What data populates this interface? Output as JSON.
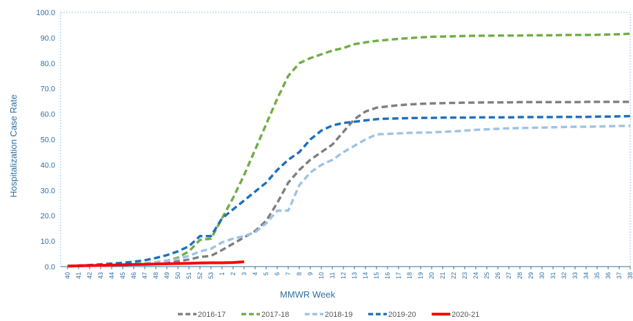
{
  "chart_data": {
    "type": "line",
    "xlabel": "MMWR Week",
    "ylabel": "Hospitalization Case Rate",
    "ylim": [
      0,
      100
    ],
    "yticks": [
      "0.0",
      "10.0",
      "20.0",
      "30.0",
      "40.0",
      "50.0",
      "60.0",
      "70.0",
      "80.0",
      "90.0",
      "100.0"
    ],
    "weeks": [
      "40",
      "41",
      "42",
      "43",
      "44",
      "45",
      "46",
      "47",
      "48",
      "49",
      "50",
      "51",
      "52",
      "53",
      "1",
      "2",
      "3",
      "4",
      "5",
      "6",
      "7",
      "8",
      "9",
      "10",
      "11",
      "12",
      "13",
      "14",
      "15",
      "16",
      "17",
      "18",
      "19",
      "20",
      "21",
      "22",
      "23",
      "24",
      "25",
      "26",
      "27",
      "28",
      "29",
      "30",
      "31",
      "32",
      "33",
      "34",
      "35",
      "36",
      "37",
      "38"
    ],
    "legend_position": "bottom",
    "grid": false,
    "series": [
      {
        "name": "2016-17",
        "color": "#7f7f7f",
        "dash": "dashed",
        "values": [
          0.1,
          0.2,
          0.3,
          0.4,
          0.5,
          0.6,
          0.8,
          1.0,
          1.3,
          1.6,
          2.0,
          2.8,
          3.8,
          4.2,
          6.5,
          9.0,
          11.5,
          14.0,
          18.0,
          25.0,
          33.0,
          38.0,
          42.0,
          45.0,
          48.0,
          53.0,
          58.0,
          61.0,
          62.5,
          63.0,
          63.5,
          63.8,
          64.0,
          64.2,
          64.3,
          64.4,
          64.5,
          64.5,
          64.6,
          64.6,
          64.6,
          64.7,
          64.7,
          64.7,
          64.7,
          64.7,
          64.7,
          64.8,
          64.8,
          64.8,
          64.8,
          64.8
        ]
      },
      {
        "name": "2017-18",
        "color": "#70ad47",
        "dash": "dashed",
        "values": [
          0.1,
          0.2,
          0.3,
          0.5,
          0.6,
          0.8,
          1.0,
          1.3,
          1.7,
          2.3,
          3.5,
          6.0,
          10.5,
          11.0,
          19.0,
          27.0,
          36.0,
          46.0,
          56.0,
          66.0,
          75.0,
          80.0,
          82.0,
          83.5,
          85.0,
          86.0,
          87.5,
          88.2,
          88.8,
          89.2,
          89.6,
          89.9,
          90.2,
          90.4,
          90.5,
          90.6,
          90.7,
          90.8,
          90.8,
          90.9,
          90.9,
          90.9,
          91.0,
          91.0,
          91.0,
          91.1,
          91.1,
          91.1,
          91.2,
          91.3,
          91.4,
          91.6
        ]
      },
      {
        "name": "2018-19",
        "color": "#9dc3e6",
        "dash": "dashed",
        "values": [
          0.1,
          0.2,
          0.3,
          0.4,
          0.5,
          0.6,
          0.8,
          1.2,
          1.6,
          2.2,
          3.0,
          4.2,
          6.0,
          7.0,
          9.5,
          11.0,
          12.0,
          13.5,
          17.0,
          22.0,
          22.0,
          32.0,
          37.0,
          40.0,
          42.0,
          45.0,
          47.5,
          50.0,
          52.0,
          52.2,
          52.4,
          52.6,
          52.7,
          52.8,
          53.0,
          53.2,
          53.5,
          53.8,
          54.0,
          54.2,
          54.4,
          54.5,
          54.6,
          54.7,
          54.8,
          54.9,
          55.0,
          55.0,
          55.1,
          55.2,
          55.3,
          55.4
        ]
      },
      {
        "name": "2019-20",
        "color": "#1f6fbf",
        "dash": "dashed",
        "values": [
          0.2,
          0.4,
          0.6,
          0.9,
          1.2,
          1.5,
          1.9,
          2.5,
          3.4,
          4.5,
          6.0,
          8.0,
          12.0,
          12.0,
          19.0,
          22.5,
          26.0,
          29.5,
          33.0,
          38.0,
          42.0,
          45.0,
          50.0,
          53.5,
          55.5,
          56.5,
          57.0,
          57.5,
          58.0,
          58.2,
          58.3,
          58.4,
          58.5,
          58.5,
          58.6,
          58.6,
          58.6,
          58.7,
          58.7,
          58.7,
          58.7,
          58.8,
          58.8,
          58.8,
          58.8,
          58.9,
          58.9,
          58.9,
          59.0,
          59.0,
          59.1,
          59.2
        ]
      },
      {
        "name": "2020-21",
        "color": "#ff0000",
        "dash": "solid",
        "values": [
          0.2,
          0.3,
          0.4,
          0.5,
          0.6,
          0.7,
          0.8,
          0.9,
          1.0,
          1.1,
          1.2,
          1.3,
          1.4,
          1.5,
          1.5,
          1.6,
          1.9
        ]
      }
    ]
  }
}
